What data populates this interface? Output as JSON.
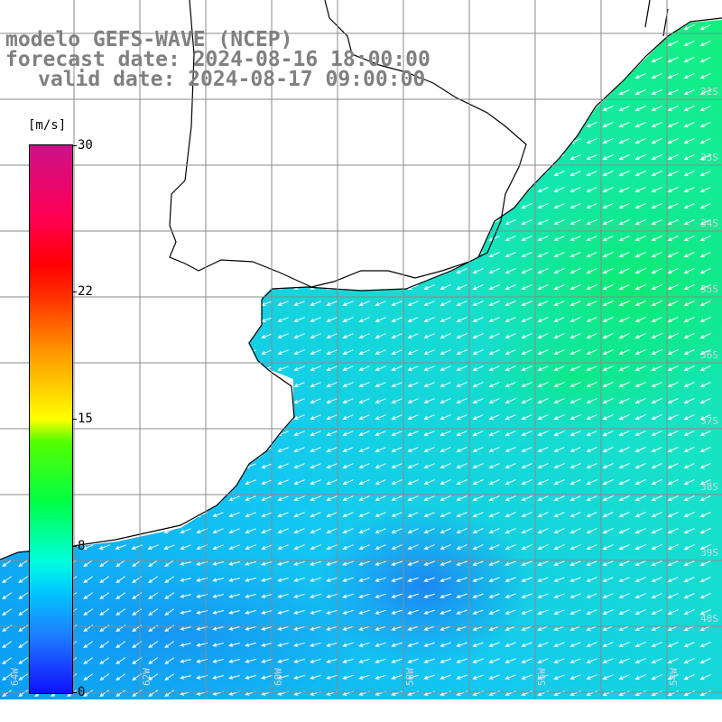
{
  "title": {
    "model": "modelo GEFS-WAVE (NCEP)",
    "forecast": "forecast date: 2024-08-16 18:00:00",
    "valid": "valid date: 2024-08-17 09:00:00"
  },
  "legend": {
    "unit": "[m/s]",
    "ticks": [
      "30",
      "22",
      "15",
      "8",
      "0"
    ],
    "tick_values": [
      30,
      22,
      15,
      8,
      0
    ],
    "range": [
      0,
      30
    ]
  },
  "lat_labels": [
    "32S",
    "33S",
    "34S",
    "35S",
    "36S",
    "37S",
    "38S",
    "39S",
    "40S"
  ],
  "lon_labels": [
    "64W",
    "62W",
    "60W",
    "58W",
    "56W",
    "54W"
  ],
  "colors": {
    "land": "#ffffff",
    "grid": "#808080",
    "coast": "#000000",
    "arrows": "#ffffff"
  },
  "wind": {
    "predominant_direction": "east-northeast to west-southwest",
    "max_speed_ms": 12,
    "min_speed_ms": 6
  }
}
